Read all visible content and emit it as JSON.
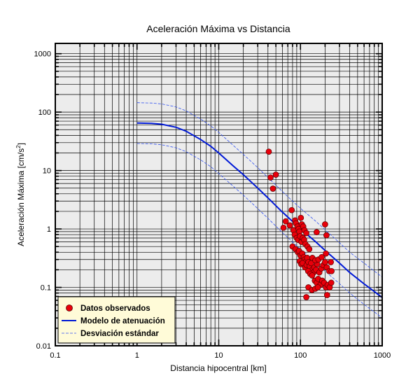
{
  "chart_data": {
    "type": "scatter",
    "title": "Aceleración Máxima vs Distancia",
    "xlabel": "Distancia hipocentral [km]",
    "ylabel": "Aceleración Máxima [cm/s",
    "ylabel_sup": "2",
    "ylabel_end": "]",
    "xscale": "log",
    "yscale": "log",
    "xlim": [
      0.1,
      1000
    ],
    "ylim": [
      0.01,
      1500
    ],
    "grid": true,
    "legend_position": "bottom-left",
    "x_ticks": [
      {
        "value": 0.1,
        "label": "0.1"
      },
      {
        "value": 1,
        "label": "1"
      },
      {
        "value": 10,
        "label": "10"
      },
      {
        "value": 100,
        "label": "100"
      },
      {
        "value": 1000,
        "label": "1000"
      }
    ],
    "y_ticks": [
      {
        "value": 0.01,
        "label": "0.01"
      },
      {
        "value": 0.1,
        "label": "0.1"
      },
      {
        "value": 1,
        "label": "1"
      },
      {
        "value": 10,
        "label": "10"
      },
      {
        "value": 100,
        "label": "100"
      },
      {
        "value": 1000,
        "label": "1000"
      }
    ],
    "colors": {
      "plot_background": "#ececec",
      "points": "#e8000b",
      "model": "#0019d6",
      "deviation": "#3050f0",
      "legend_background": "#fffbd8"
    },
    "series": [
      {
        "name": "Datos observados",
        "kind": "scatter",
        "points": [
          [
            41,
            21
          ],
          [
            50,
            8.5
          ],
          [
            43,
            7.6
          ],
          [
            46,
            4.9
          ],
          [
            78,
            2.1
          ],
          [
            66,
            1.35
          ],
          [
            62,
            1.05
          ],
          [
            74,
            1.15
          ],
          [
            82,
            0.95
          ],
          [
            86,
            1.4
          ],
          [
            88,
            1.25
          ],
          [
            92,
            1.1
          ],
          [
            95,
            1.0
          ],
          [
            97,
            0.9
          ],
          [
            101,
            1.55
          ],
          [
            104,
            1.2
          ],
          [
            108,
            1.1
          ],
          [
            112,
            0.95
          ],
          [
            118,
            0.85
          ],
          [
            85,
            0.8
          ],
          [
            90,
            0.7
          ],
          [
            94,
            0.65
          ],
          [
            99,
            0.75
          ],
          [
            103,
            0.6
          ],
          [
            107,
            0.7
          ],
          [
            111,
            0.65
          ],
          [
            115,
            0.55
          ],
          [
            122,
            0.5
          ],
          [
            128,
            0.45
          ],
          [
            80,
            0.5
          ],
          [
            87,
            0.45
          ],
          [
            93,
            0.4
          ],
          [
            96,
            0.42
          ],
          [
            100,
            0.35
          ],
          [
            105,
            0.38
          ],
          [
            110,
            0.33
          ],
          [
            113,
            0.3
          ],
          [
            117,
            0.28
          ],
          [
            121,
            0.32
          ],
          [
            98,
            0.28
          ],
          [
            102,
            0.25
          ],
          [
            106,
            0.26
          ],
          [
            114,
            0.22
          ],
          [
            119,
            0.24
          ],
          [
            125,
            0.27
          ],
          [
            130,
            0.23
          ],
          [
            135,
            0.26
          ],
          [
            140,
            0.2
          ],
          [
            145,
            0.18
          ],
          [
            124,
            0.19
          ],
          [
            132,
            0.17
          ],
          [
            139,
            0.16
          ],
          [
            148,
            0.22
          ],
          [
            155,
            0.2
          ],
          [
            160,
            0.25
          ],
          [
            170,
            0.18
          ],
          [
            180,
            0.21
          ],
          [
            190,
            0.24
          ],
          [
            200,
            0.27
          ],
          [
            210,
            0.22
          ],
          [
            225,
            0.19
          ],
          [
            235,
            0.27
          ],
          [
            240,
            0.19
          ],
          [
            150,
            0.13
          ],
          [
            158,
            0.12
          ],
          [
            165,
            0.14
          ],
          [
            175,
            0.11
          ],
          [
            185,
            0.13
          ],
          [
            195,
            0.12
          ],
          [
            205,
            0.1
          ],
          [
            215,
            0.11
          ],
          [
            228,
            0.1
          ],
          [
            238,
            0.12
          ],
          [
            125,
            0.1
          ],
          [
            138,
            0.09
          ],
          [
            152,
            0.095
          ],
          [
            163,
            0.1
          ],
          [
            118,
            0.068
          ],
          [
            212,
            0.074
          ],
          [
            140,
            0.32
          ],
          [
            152,
            0.29
          ],
          [
            166,
            0.3
          ],
          [
            182,
            0.33
          ],
          [
            205,
            0.38
          ],
          [
            158,
            0.88
          ],
          [
            200,
            1.2
          ],
          [
            208,
            0.78
          ]
        ]
      },
      {
        "name": "Modelo de atenuación",
        "kind": "line",
        "points": [
          [
            1,
            65
          ],
          [
            1.5,
            64
          ],
          [
            2,
            62
          ],
          [
            3,
            55
          ],
          [
            4,
            47
          ],
          [
            6,
            34
          ],
          [
            8,
            26
          ],
          [
            10,
            20
          ],
          [
            15,
            12
          ],
          [
            20,
            8.5
          ],
          [
            30,
            5.0
          ],
          [
            40,
            3.4
          ],
          [
            60,
            1.95
          ],
          [
            80,
            1.35
          ],
          [
            100,
            1.0
          ],
          [
            150,
            0.62
          ],
          [
            200,
            0.43
          ],
          [
            300,
            0.26
          ],
          [
            400,
            0.18
          ],
          [
            600,
            0.115
          ],
          [
            800,
            0.085
          ],
          [
            1000,
            0.067
          ]
        ]
      },
      {
        "name": "Desviación estándar",
        "kind": "dashed",
        "points_upper": [
          [
            1,
            145
          ],
          [
            1.5,
            143
          ],
          [
            2,
            138
          ],
          [
            3,
            123
          ],
          [
            4,
            105
          ],
          [
            6,
            76
          ],
          [
            8,
            58
          ],
          [
            10,
            45
          ],
          [
            15,
            27
          ],
          [
            20,
            19
          ],
          [
            30,
            11.2
          ],
          [
            40,
            7.6
          ],
          [
            60,
            4.4
          ],
          [
            80,
            3.0
          ],
          [
            100,
            2.25
          ],
          [
            150,
            1.4
          ],
          [
            200,
            0.97
          ],
          [
            300,
            0.58
          ],
          [
            400,
            0.4
          ],
          [
            600,
            0.26
          ],
          [
            800,
            0.19
          ],
          [
            1000,
            0.15
          ]
        ],
        "points_lower": [
          [
            1,
            29
          ],
          [
            1.5,
            28.6
          ],
          [
            2,
            27.6
          ],
          [
            3,
            24.5
          ],
          [
            4,
            21
          ],
          [
            6,
            15.2
          ],
          [
            8,
            11.6
          ],
          [
            10,
            8.9
          ],
          [
            15,
            5.4
          ],
          [
            20,
            3.8
          ],
          [
            30,
            2.23
          ],
          [
            40,
            1.52
          ],
          [
            60,
            0.87
          ],
          [
            80,
            0.6
          ],
          [
            100,
            0.45
          ],
          [
            150,
            0.28
          ],
          [
            200,
            0.19
          ],
          [
            300,
            0.116
          ],
          [
            400,
            0.08
          ],
          [
            600,
            0.051
          ],
          [
            800,
            0.038
          ],
          [
            1000,
            0.03
          ]
        ]
      }
    ]
  }
}
